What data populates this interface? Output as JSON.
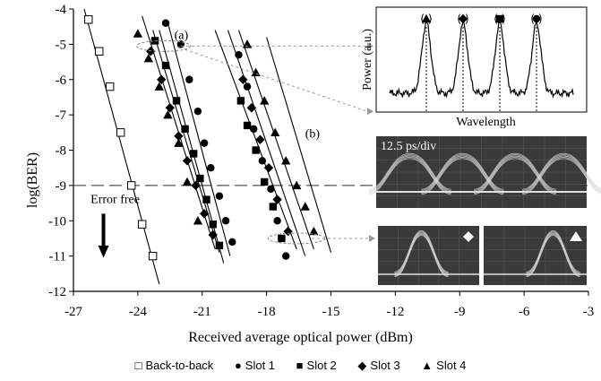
{
  "chart_data": {
    "type": "scatter",
    "xlabel": "Received average optical  power (dBm)",
    "ylabel": "log(BER)",
    "xlim": [
      -27,
      -3
    ],
    "ylim": [
      -12,
      -4
    ],
    "xticks": [
      "-27",
      "-24",
      "-21",
      "-18",
      "-15",
      "-12",
      "-9",
      "-6",
      "-3"
    ],
    "yticks": [
      "-4",
      "-5",
      "-6",
      "-7",
      "-8",
      "-9",
      "-10",
      "-11",
      "-12"
    ],
    "grid": false,
    "legend_position": "bottom",
    "threshold": {
      "y": -9,
      "label": "Error free"
    },
    "group_labels": [
      "(a)",
      "(b)"
    ],
    "series": [
      {
        "name": "Back-to-back",
        "marker": "open-square",
        "x": [
          -26.3,
          -25.8,
          -25.3,
          -24.8,
          -24.3,
          -23.8,
          -23.3
        ],
        "y": [
          -4.3,
          -5.2,
          -6.2,
          -7.5,
          -9.0,
          -10.1,
          -11.0
        ]
      },
      {
        "name": "Slot 1",
        "marker": "circle",
        "x": [
          -22.7,
          -22.0,
          -21.6,
          -21.2,
          -20.9,
          -20.6,
          -20.2,
          -19.9,
          -19.6,
          -19.3,
          -18.9,
          -18.6,
          -18.2,
          -17.8,
          -17.5,
          -17.1
        ],
        "y": [
          -4.4,
          -5.0,
          -6.0,
          -6.9,
          -7.8,
          -8.5,
          -9.3,
          -10.0,
          -10.6,
          -5.3,
          -6.2,
          -7.4,
          -8.3,
          -9.1,
          -10.0,
          -11.0
        ]
      },
      {
        "name": "Slot 2",
        "marker": "square",
        "x": [
          -23.2,
          -22.7,
          -22.2,
          -21.8,
          -21.4,
          -21.1,
          -20.8,
          -20.5,
          -20.2,
          -19.2,
          -18.9,
          -18.5,
          -18.1,
          -17.7,
          -17.3
        ],
        "y": [
          -4.9,
          -5.6,
          -6.6,
          -7.4,
          -8.1,
          -8.8,
          -9.4,
          -10.1,
          -10.7,
          -6.6,
          -7.3,
          -8.0,
          -8.9,
          -9.6,
          -10.5
        ]
      },
      {
        "name": "Slot 3",
        "marker": "diamond",
        "x": [
          -23.4,
          -22.9,
          -22.5,
          -22.1,
          -21.7,
          -21.3,
          -20.9,
          -20.5,
          -19.1,
          -18.7,
          -18.3,
          -17.9,
          -17.5,
          -17.0
        ],
        "y": [
          -5.2,
          -6.0,
          -6.8,
          -7.6,
          -8.3,
          -9.0,
          -9.8,
          -10.4,
          -6.0,
          -6.8,
          -7.7,
          -8.5,
          -9.4,
          -10.3
        ]
      },
      {
        "name": "Slot 4",
        "marker": "triangle",
        "x": [
          -24.0,
          -23.5,
          -23.0,
          -22.6,
          -22.1,
          -21.7,
          -21.2,
          -18.9,
          -18.5,
          -18.1,
          -17.6,
          -17.1,
          -16.6,
          -16.2,
          -15.8
        ],
        "y": [
          -4.7,
          -5.4,
          -6.2,
          -7.0,
          -7.8,
          -8.9,
          -10.0,
          -5.0,
          -5.8,
          -6.6,
          -7.5,
          -8.3,
          -9.0,
          -9.6,
          -10.3
        ]
      }
    ],
    "fit_lines": [
      {
        "x": [
          -26.5,
          -23.0
        ],
        "y": [
          -4.0,
          -11.8
        ]
      },
      {
        "x": [
          -23.8,
          -20.4
        ],
        "y": [
          -4.2,
          -10.8
        ]
      },
      {
        "x": [
          -23.3,
          -20.2
        ],
        "y": [
          -4.6,
          -10.9
        ]
      },
      {
        "x": [
          -23.0,
          -20.0
        ],
        "y": [
          -4.6,
          -11.2
        ]
      },
      {
        "x": [
          -22.6,
          -19.7
        ],
        "y": [
          -4.4,
          -11.0
        ]
      },
      {
        "x": [
          -20.4,
          -16.6
        ],
        "y": [
          -4.6,
          -10.8
        ]
      },
      {
        "x": [
          -19.8,
          -16.2
        ],
        "y": [
          -4.6,
          -11.0
        ]
      },
      {
        "x": [
          -19.3,
          -15.8
        ],
        "y": [
          -4.6,
          -10.8
        ]
      },
      {
        "x": [
          -18.0,
          -15.0
        ],
        "y": [
          -4.8,
          -10.9
        ]
      }
    ],
    "insets": {
      "spectrum": {
        "xlabel": "Wavelength",
        "ylabel": "Power (a.u.)",
        "peak_markers": [
          "triangle",
          "diamond",
          "square",
          "circle"
        ]
      },
      "eye_diagram": {
        "annotation": "12.5 ps/div"
      },
      "eye_pair": {
        "markers": [
          "diamond",
          "triangle"
        ]
      }
    }
  },
  "legend_symbols": {
    "back_to_back": "□",
    "slot1": "●",
    "slot2": "■",
    "slot3": "◆",
    "slot4": "▲"
  }
}
